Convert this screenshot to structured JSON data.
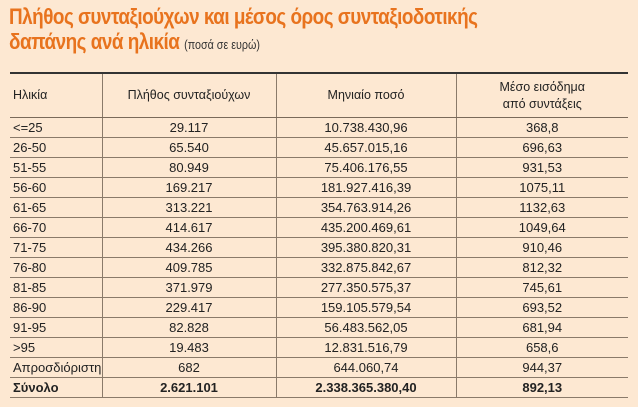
{
  "title": {
    "line1": "Πλήθος συνταξιούχων και μέσος όρος συνταξιοδοτικής",
    "line2": "δαπάνης ανά ηλικία",
    "note": "(ποσά σε ευρώ)"
  },
  "table": {
    "headers": [
      "Ηλικία",
      "Πλήθος συνταξιούχων",
      "Μηνιαίο ποσό",
      "Μέσο εισόδημα από συντάξεις"
    ],
    "rows": [
      [
        "<=25",
        "29.117",
        "10.738.430,96",
        "368,8"
      ],
      [
        "26-50",
        "65.540",
        "45.657.015,16",
        "696,63"
      ],
      [
        "51-55",
        "80.949",
        "75.406.176,55",
        "931,53"
      ],
      [
        "56-60",
        "169.217",
        "181.927.416,39",
        "1075,11"
      ],
      [
        "61-65",
        "313.221",
        "354.763.914,26",
        "1132,63"
      ],
      [
        "66-70",
        "414.617",
        "435.200.469,61",
        "1049,64"
      ],
      [
        "71-75",
        "434.266",
        "395.380.820,31",
        "910,46"
      ],
      [
        "76-80",
        "409.785",
        "332.875.842,67",
        "812,32"
      ],
      [
        "81-85",
        "371.979",
        "277.350.575,37",
        "745,61"
      ],
      [
        "86-90",
        "229.417",
        "159.105.579,54",
        "693,52"
      ],
      [
        "91-95",
        "82.828",
        "56.483.562,05",
        "681,94"
      ],
      [
        ">95",
        "19.483",
        "12.831.516,79",
        "658,6"
      ],
      [
        "Απροσδιόριστη",
        "682",
        "644.060,74",
        "944,37"
      ]
    ],
    "total": [
      "Σύνολο",
      "2.621.101",
      "2.338.365.380,40",
      "892,13"
    ]
  },
  "colors": {
    "title": "#e8731e",
    "background": "#fde8d2"
  }
}
